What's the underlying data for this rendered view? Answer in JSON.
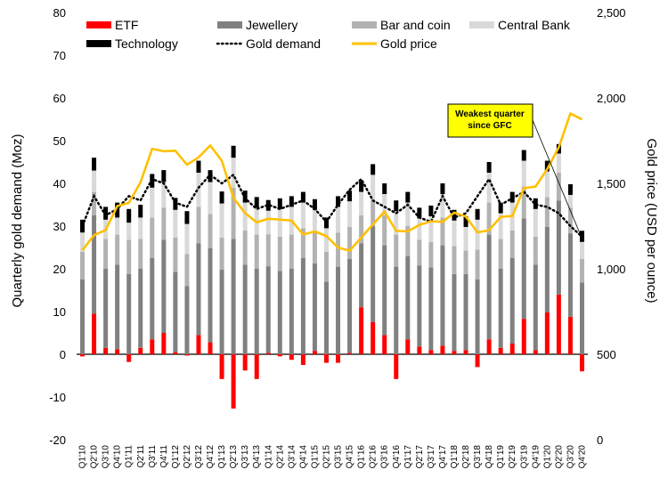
{
  "chart_data": {
    "type": "bar",
    "title": "",
    "ylabel": "Quarterly gold demand (Moz)",
    "y2label": "Gold price (USD per ounce)",
    "ylim": [
      -20,
      80
    ],
    "y2lim": [
      0,
      2500
    ],
    "yticks": [
      "-20",
      "-10",
      "0",
      "10",
      "20",
      "30",
      "40",
      "50",
      "60",
      "70",
      "80"
    ],
    "y2ticks": [
      "0",
      "500",
      "1,000",
      "1,500",
      "2,000",
      "2,500"
    ],
    "categories": [
      "Q1'10",
      "Q2'10",
      "Q3'10",
      "Q4'10",
      "Q1'11",
      "Q2'11",
      "Q3'11",
      "Q4'11",
      "Q1'12",
      "Q2'12",
      "Q3'12",
      "Q4'12",
      "Q1'13",
      "Q2'13",
      "Q3'13",
      "Q4'13",
      "Q1'14",
      "Q2'14",
      "Q3'14",
      "Q4'14",
      "Q1'15",
      "Q2'15",
      "Q3'15",
      "Q4'15",
      "Q1'16",
      "Q2'16",
      "Q3'16",
      "Q4'16",
      "Q1'17",
      "Q2'17",
      "Q3'17",
      "Q4'17",
      "Q1'18",
      "Q2'18",
      "Q3'18",
      "Q4'18",
      "Q1'19",
      "Q2'19",
      "Q3'19",
      "Q4'19",
      "Q1'20",
      "Q2'20",
      "Q3'20",
      "Q4'20"
    ],
    "xticks": [
      "Q1'10",
      "Q2'10",
      "Q3'10",
      "Q4'10",
      "Q1'11",
      "Q2'11",
      "Q3'11",
      "Q4'11",
      "Q1'12",
      "Q2'12",
      "Q3'12",
      "Q4'12",
      "Q1'13",
      "Q2'13",
      "Q3'13",
      "Q4'13",
      "Q1'14",
      "Q2'14",
      "Q3'14",
      "Q4'14",
      "Q1'15",
      "Q2'15",
      "Q3'15",
      "Q4'15",
      "Q1'16",
      "Q2'16",
      "Q3'16",
      "Q4'16",
      "Q1'17",
      "Q2'17",
      "Q3'17",
      "Q4'17",
      "Q1'18",
      "Q2'18",
      "Q3'18",
      "Q4'18",
      "Q1'19",
      "Q2'19",
      "Q3'19",
      "Q4'19",
      "Q1'20",
      "Q2'20",
      "Q3'20",
      "Q4'20"
    ],
    "legend_position": "top",
    "series": [
      {
        "name": "ETF",
        "kind": "bar",
        "color": "#ff0000",
        "values": [
          -0.5,
          9.5,
          1.5,
          1.2,
          -1.8,
          1.5,
          3.5,
          5.0,
          0.5,
          -0.3,
          4.5,
          2.8,
          -5.8,
          -12.7,
          -3.8,
          -5.8,
          0.3,
          -0.5,
          -1.3,
          -2.5,
          0.8,
          -2.0,
          -2.0,
          0.3,
          11.0,
          7.5,
          4.5,
          -5.8,
          3.5,
          1.8,
          1.0,
          2.0,
          0.8,
          1.0,
          -3.0,
          3.5,
          1.5,
          2.5,
          8.3,
          1.0,
          9.8,
          14.0,
          8.8,
          -4.0
        ]
      },
      {
        "name": "Jewellery",
        "kind": "bar",
        "color": "#808080",
        "values": [
          17.5,
          23.0,
          18.5,
          19.8,
          18.8,
          18.5,
          19.0,
          21.8,
          18.8,
          16.0,
          21.5,
          22.0,
          19.8,
          27.0,
          21.0,
          20.0,
          20.3,
          19.5,
          20.0,
          22.5,
          20.5,
          17.0,
          20.5,
          22.0,
          15.0,
          22.5,
          21.0,
          20.5,
          19.5,
          19.0,
          19.3,
          23.5,
          18.0,
          17.8,
          17.5,
          24.5,
          18.5,
          20.0,
          23.5,
          20.0,
          20.0,
          22.0,
          19.5,
          16.8
        ]
      },
      {
        "name": "Bar and coin",
        "kind": "bar",
        "color": "#b2b2b2",
        "values": [
          6.5,
          5.5,
          7.0,
          7.0,
          8.0,
          7.0,
          9.5,
          7.5,
          8.0,
          7.5,
          8.5,
          8.0,
          7.5,
          12.0,
          8.0,
          8.0,
          7.5,
          8.0,
          8.0,
          7.0,
          7.5,
          7.0,
          8.0,
          7.5,
          6.5,
          6.0,
          7.0,
          7.5,
          7.0,
          6.0,
          6.0,
          6.5,
          6.5,
          5.5,
          7.0,
          7.5,
          7.0,
          6.5,
          7.5,
          6.5,
          7.0,
          6.5,
          6.0,
          5.5
        ]
      },
      {
        "name": "Central Bank",
        "kind": "bar",
        "color": "#d9d9d9",
        "values": [
          4.5,
          5.0,
          4.5,
          4.0,
          4.0,
          5.0,
          7.0,
          6.0,
          6.5,
          7.0,
          8.0,
          7.5,
          8.0,
          7.0,
          6.5,
          6.3,
          5.5,
          6.5,
          6.5,
          6.0,
          5.0,
          5.5,
          6.0,
          6.0,
          5.5,
          6.0,
          5.0,
          5.5,
          5.5,
          5.0,
          6.0,
          5.5,
          6.0,
          5.5,
          7.0,
          7.0,
          6.0,
          6.5,
          6.0,
          6.5,
          6.0,
          4.5,
          3.0,
          4.0
        ]
      },
      {
        "name": "Technology",
        "kind": "bar",
        "color": "#000000",
        "values": [
          3.0,
          3.0,
          3.0,
          3.5,
          3.2,
          3.0,
          3.2,
          2.8,
          2.8,
          3.0,
          2.8,
          2.8,
          2.8,
          2.8,
          2.8,
          2.5,
          2.5,
          2.5,
          2.5,
          2.5,
          2.5,
          2.5,
          2.5,
          2.5,
          2.5,
          2.5,
          2.5,
          2.5,
          2.5,
          2.5,
          2.5,
          2.5,
          2.5,
          2.5,
          2.5,
          2.5,
          2.5,
          2.5,
          2.5,
          2.5,
          2.5,
          2.2,
          2.5,
          2.6
        ]
      },
      {
        "name": "Gold demand",
        "kind": "line",
        "style": "dotted",
        "color": "#000000",
        "values": [
          30.0,
          37.0,
          32.5,
          34.0,
          37.0,
          36.0,
          41.0,
          40.0,
          35.5,
          34.5,
          39.0,
          42.0,
          40.0,
          42.0,
          36.5,
          34.0,
          35.0,
          34.0,
          35.0,
          36.0,
          34.0,
          31.0,
          35.0,
          38.5,
          41.0,
          36.0,
          34.5,
          33.0,
          35.0,
          32.0,
          31.0,
          37.0,
          32.0,
          33.0,
          37.0,
          41.0,
          35.0,
          36.5,
          38.0,
          35.0,
          34.5,
          33.0,
          30.0,
          27.5
        ]
      },
      {
        "name": "Gold price",
        "kind": "line",
        "axis": "right",
        "color": "#ffc000",
        "values": [
          1109,
          1197,
          1227,
          1367,
          1386,
          1506,
          1702,
          1688,
          1691,
          1609,
          1652,
          1722,
          1632,
          1415,
          1326,
          1272,
          1293,
          1288,
          1282,
          1201,
          1218,
          1192,
          1124,
          1106,
          1183,
          1260,
          1335,
          1222,
          1219,
          1257,
          1278,
          1275,
          1329,
          1306,
          1213,
          1226,
          1304,
          1309,
          1472,
          1481,
          1583,
          1711,
          1909,
          1874
        ]
      }
    ],
    "annotation": {
      "text_lines": [
        "Weakest quarter",
        "since GFC"
      ],
      "color": "#ffff00",
      "points_to": "Q4'20"
    }
  }
}
